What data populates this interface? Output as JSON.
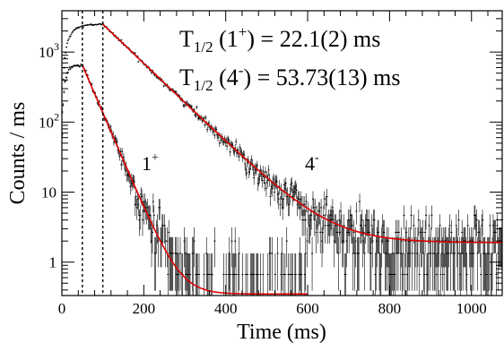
{
  "chart_data": {
    "type": "scatter",
    "title": "",
    "xlabel": "Time (ms)",
    "ylabel": "Counts / ms",
    "xlim": [
      0,
      1075
    ],
    "ylim_log10": [
      -0.477,
      3.59
    ],
    "y_scale": "log",
    "grid": false,
    "x_ticks": [
      {
        "value": 0,
        "label": "0"
      },
      {
        "value": 200,
        "label": "200"
      },
      {
        "value": 400,
        "label": "400"
      },
      {
        "value": 600,
        "label": "600"
      },
      {
        "value": 800,
        "label": "800"
      },
      {
        "value": 1000,
        "label": "1000"
      }
    ],
    "y_ticks": [
      {
        "value": 1,
        "base": "1",
        "exp": ""
      },
      {
        "value": 10,
        "base": "10",
        "exp": ""
      },
      {
        "value": 100,
        "base": "10",
        "exp": "2"
      },
      {
        "value": 1000,
        "base": "10",
        "exp": "3"
      }
    ],
    "annotations": {
      "eq1": {
        "prefix": "T",
        "sub": "1/2",
        "open": " (1",
        "sup": "+",
        "rest": ") = 22.1(2) ms"
      },
      "eq2": {
        "prefix": "T",
        "sub": "1/2",
        "open": " (4",
        "sup": "-",
        "rest": ") = 53.73(13) ms"
      },
      "label1": {
        "base": "1",
        "sup": "+"
      },
      "label2": {
        "base": "4",
        "sup": "-"
      }
    },
    "vlines_dashed": [
      50,
      100
    ],
    "series": [
      {
        "rise_end": 50,
        "peak": 650,
        "half_life": 22.1,
        "background": 0.35,
        "fit_end": 600,
        "data_end": 600
      },
      {
        "rise_end": 100,
        "peak": 2500,
        "half_life": 53.73,
        "background": 1.9,
        "fit_end": 1075,
        "data_end": 1075
      }
    ],
    "colors": {
      "fit": "#dd0000",
      "data": "#000000",
      "axis": "#000000"
    }
  }
}
